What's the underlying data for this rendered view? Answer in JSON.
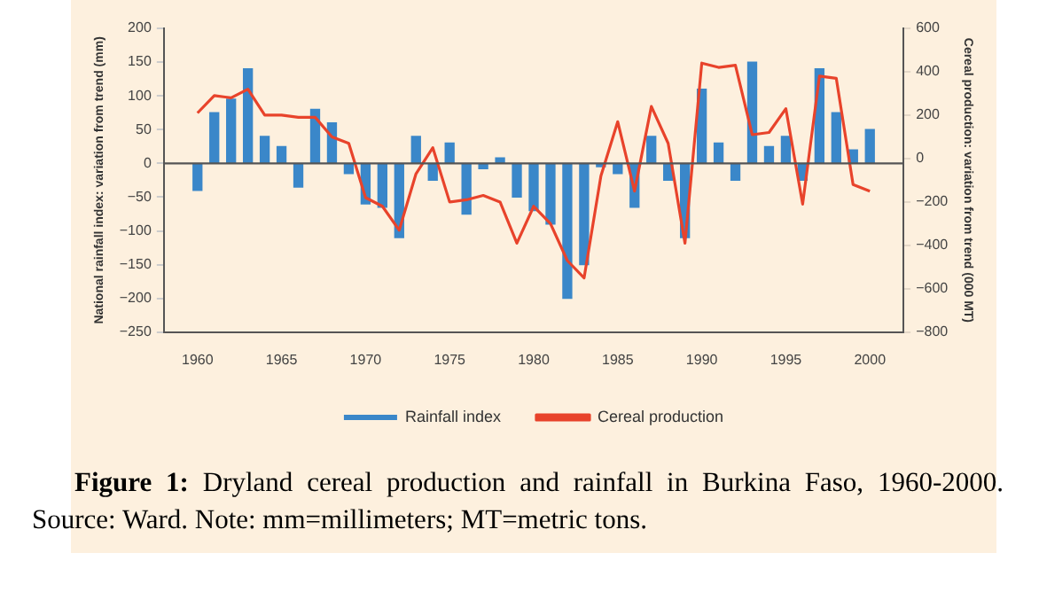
{
  "chart_data": {
    "type": "bar",
    "ylabel": "National rainfall index: variation from trend (mm)",
    "y2label": "Cereal production: variation from trend (000 MT)",
    "x": [
      1960,
      1961,
      1962,
      1963,
      1964,
      1965,
      1966,
      1967,
      1968,
      1969,
      1970,
      1971,
      1972,
      1973,
      1974,
      1975,
      1976,
      1977,
      1978,
      1979,
      1980,
      1981,
      1982,
      1983,
      1984,
      1985,
      1986,
      1987,
      1988,
      1989,
      1990,
      1991,
      1992,
      1993,
      1994,
      1995,
      1996,
      1997,
      1998,
      1999,
      2000
    ],
    "series": [
      {
        "name": "Rainfall index",
        "color": "#3a87c9",
        "values": [
          -40,
          75,
          95,
          140,
          40,
          25,
          -35,
          80,
          60,
          -15,
          -60,
          -65,
          -110,
          40,
          -25,
          30,
          -75,
          -8,
          8,
          -50,
          -70,
          -90,
          -200,
          -150,
          -5,
          -15,
          -65,
          40,
          -25,
          -110,
          110,
          30,
          -25,
          150,
          25,
          40,
          -25,
          140,
          75,
          20,
          50
        ]
      },
      {
        "name": "Cereal production",
        "type": "line",
        "axis": "y2",
        "color": "#e8432b",
        "values": [
          210,
          290,
          280,
          320,
          200,
          200,
          190,
          190,
          100,
          70,
          -180,
          -220,
          -330,
          -70,
          50,
          -200,
          -190,
          -170,
          -200,
          -390,
          -220,
          -300,
          -470,
          -550,
          -80,
          170,
          -150,
          240,
          70,
          -390,
          440,
          420,
          430,
          110,
          120,
          230,
          -210,
          380,
          370,
          -120,
          -150
        ]
      }
    ],
    "xlim": [
      1958,
      2002
    ],
    "xticks": [
      1960,
      1965,
      1970,
      1975,
      1980,
      1985,
      1990,
      1995,
      2000
    ],
    "ylim": [
      -250,
      200
    ],
    "yticks": [
      -250,
      -200,
      -150,
      -100,
      -50,
      0,
      50,
      100,
      150,
      200
    ],
    "y2lim": [
      -800,
      600
    ],
    "y2ticks": [
      -800,
      -600,
      -400,
      -200,
      0,
      200,
      400,
      600
    ],
    "ref_lines": [
      {
        "axis": "y",
        "value": 0,
        "color": "#555555"
      }
    ],
    "grid": false,
    "legend": "bottom",
    "marker": "none",
    "line_style": "solid",
    "annotations": [
      "Figure 1: Dryland cereal production and rainfall in Burkina Faso, 1960-2000. Source: Ward. Note: mm=millimeters; MT=metric tons."
    ]
  }
}
